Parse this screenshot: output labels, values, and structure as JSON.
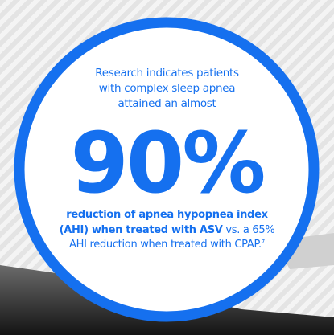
{
  "intro": "Research indicates patients with complex sleep apnea attained an almost",
  "stat": "90%",
  "result": {
    "bold": "reduction of apnea hypopnea index (AHI) when treated with ASV",
    "text": "vs. a 65% AHI reduction when treated with CPAP.",
    "footnote": "7"
  }
}
